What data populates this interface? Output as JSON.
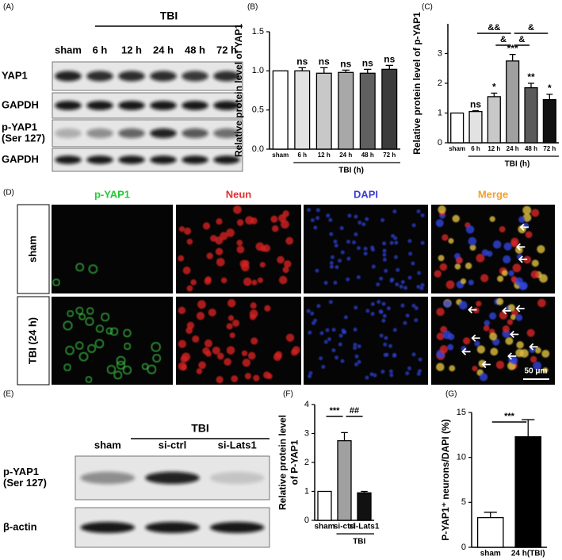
{
  "panel_labels": [
    "(A)",
    "(B)",
    "(C)",
    "(D)",
    "(E)",
    "(F)",
    "(G)"
  ],
  "blot_a": {
    "group": "TBI",
    "lanes": [
      "sham",
      "6 h",
      "12 h",
      "24 h",
      "48 h",
      "72 h"
    ],
    "rows": [
      [
        "YAP1"
      ],
      [
        "GAPDH"
      ],
      [
        "p-YAP1",
        "(Ser 127)"
      ],
      [
        "GAPDH"
      ]
    ]
  },
  "blot_e": {
    "group": "TBI",
    "lanes": [
      "sham",
      "si-ctrl",
      "si-Lats1"
    ],
    "rows": [
      [
        "p-YAP1",
        "(Ser 127)"
      ],
      [
        "β-actin"
      ]
    ]
  },
  "microscopy": {
    "channels": [
      "p-YAP1",
      "Neun",
      "DAPI",
      "Merge"
    ],
    "rows": [
      "sham",
      "TBI (24 h)"
    ],
    "scale_bar": "50 μm"
  },
  "chart_data": [
    {
      "type": "bar",
      "ylabel": [
        "Relative protein level of YAP1"
      ],
      "xlabel": "TBI (h)",
      "categories": [
        "sham",
        "6 h",
        "12 h",
        "24 h",
        "48 h",
        "72 h"
      ],
      "values": [
        1,
        1.0,
        0.97,
        0.98,
        0.97,
        1.02
      ],
      "errors": [
        0,
        0.04,
        0.07,
        0.03,
        0.05,
        0.05
      ],
      "annotations": [
        null,
        "ns",
        "ns",
        "ns",
        "ns",
        "ns"
      ],
      "colors": [
        "#ffffff",
        "#e2e2e2",
        "#c8c8c8",
        "#a8a8a8",
        "#606060",
        "#3c3c3c"
      ],
      "ylim": [
        0,
        1.5
      ],
      "yticks": [
        {
          "value": 0,
          "label": "0.0"
        },
        {
          "value": 0.5,
          "label": "0.5"
        },
        {
          "value": 1,
          "label": "1.0"
        },
        {
          "value": 1.5,
          "label": "1.5"
        }
      ]
    },
    {
      "type": "bar",
      "ylabel": [
        "Relative protein level of p-YAP1"
      ],
      "xlabel": "TBI (h)",
      "categories": [
        "sham",
        "6 h",
        "12 h",
        "24 h",
        "48 h",
        "72 h"
      ],
      "values": [
        1,
        1.05,
        1.55,
        2.75,
        1.85,
        1.45
      ],
      "errors": [
        0,
        0.03,
        0.12,
        0.22,
        0.15,
        0.18
      ],
      "annotations": [
        null,
        "ns",
        "*",
        "***",
        "**",
        "*"
      ],
      "comparisons": [
        {
          "label": "&&",
          "from": 1,
          "to": 3
        },
        {
          "label": "&",
          "from": 3,
          "to": 5
        },
        {
          "label": "&",
          "from": 2,
          "to": 3
        },
        {
          "label": "&",
          "from": 3,
          "to": 4
        }
      ],
      "colors": [
        "#ffffff",
        "#e2e2e2",
        "#c8c8c8",
        "#a0a0a0",
        "#5a5a5a",
        "#111111"
      ],
      "ylim": [
        0,
        4
      ],
      "yticks": [
        0,
        1,
        2,
        3
      ]
    },
    {
      "type": "bar",
      "ylabel": [
        "Relative protein level",
        "of P-YAP1"
      ],
      "xlabel": "TBI",
      "categories": [
        "sham",
        "si-ctrl",
        "si-Lats1"
      ],
      "values": [
        1,
        2.75,
        0.95
      ],
      "errors": [
        0,
        0.28,
        0.05
      ],
      "comparisons": [
        {
          "label": "***",
          "from": 0,
          "to": 1
        },
        {
          "label": "##",
          "from": 1,
          "to": 2
        }
      ],
      "colors": [
        "#ffffff",
        "#a0a0a0",
        "#111111"
      ],
      "ylim": [
        0,
        4
      ],
      "yticks": [
        0,
        1,
        2,
        3,
        4
      ]
    },
    {
      "type": "bar",
      "ylabel": [
        "P-YAP1⁺ neurons/DAPI (%)"
      ],
      "categories": [
        "sham",
        "24 h(TBI)"
      ],
      "values": [
        3.3,
        12.3
      ],
      "errors": [
        0.6,
        1.9
      ],
      "comparisons": [
        {
          "label": "***",
          "from": 0,
          "to": 1
        }
      ],
      "colors": [
        "#ffffff",
        "#000000"
      ],
      "ylim": [
        0,
        15
      ],
      "yticks": [
        0,
        5,
        10,
        15
      ]
    }
  ]
}
